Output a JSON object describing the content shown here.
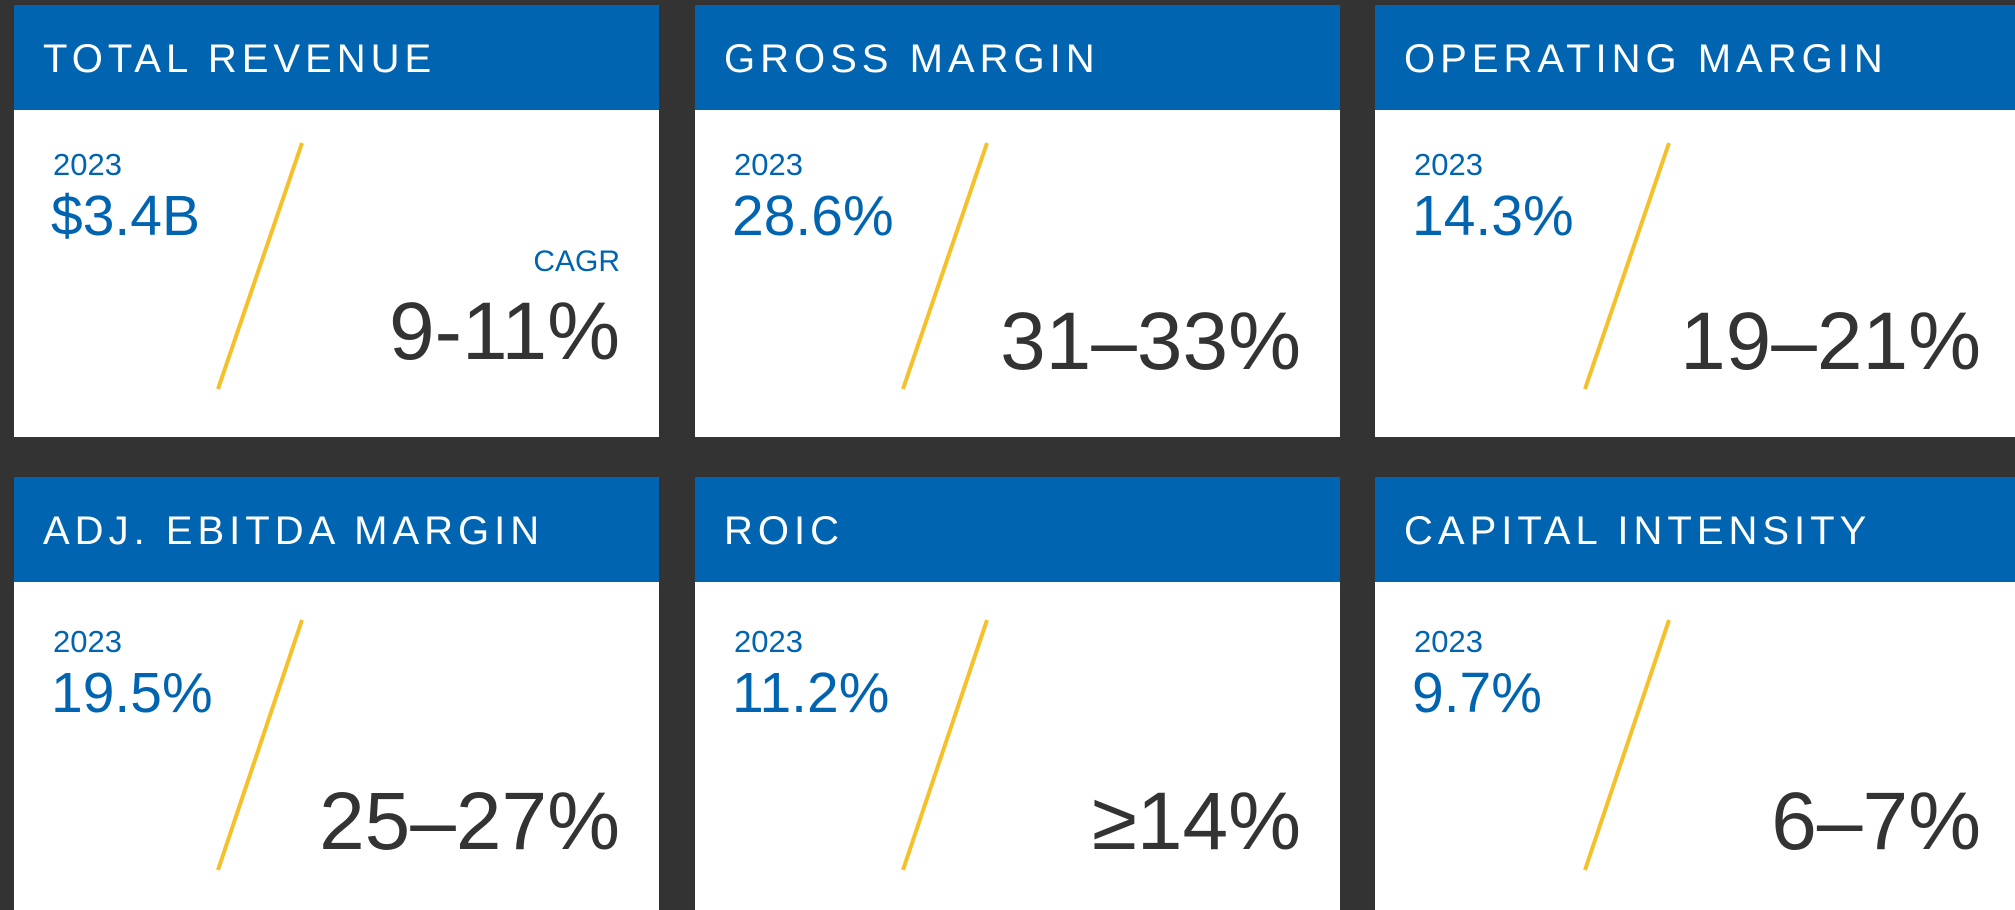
{
  "cards": [
    {
      "title": "TOTAL REVENUE",
      "year": "2023",
      "current": "$3.4B",
      "label": "CAGR",
      "target": "9-11%"
    },
    {
      "title": "GROSS MARGIN",
      "year": "2023",
      "current": "28.6%",
      "target": "31–33%"
    },
    {
      "title": "OPERATING MARGIN",
      "year": "2023",
      "current": "14.3%",
      "target": "19–21%"
    },
    {
      "title": "ADJ. EBITDA MARGIN",
      "year": "2023",
      "current": "19.5%",
      "target": "25–27%"
    },
    {
      "title": "ROIC",
      "year": "2023",
      "current": "11.2%",
      "target": "≥14%"
    },
    {
      "title": "CAPITAL INTENSITY",
      "year": "2023",
      "current": "9.7%",
      "target": "6–7%"
    }
  ]
}
